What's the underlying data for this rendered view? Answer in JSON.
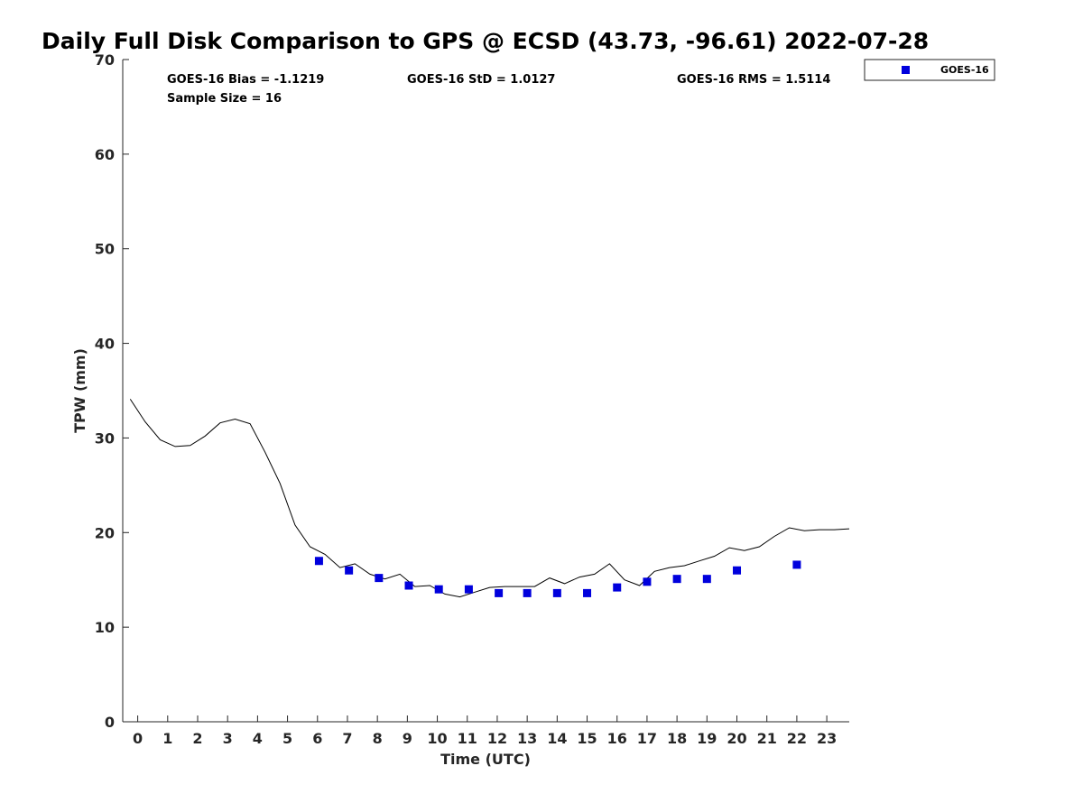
{
  "chart_data": {
    "type": "scatter",
    "title": "Daily Full Disk Comparison to GPS @ ECSD (43.73, -96.61) 2022-07-28",
    "xlabel": "Time (UTC)",
    "ylabel": "TPW (mm)",
    "xlim": [
      -0.5,
      23.75
    ],
    "ylim": [
      0,
      70
    ],
    "x_ticks": [
      0,
      1,
      2,
      3,
      4,
      5,
      6,
      7,
      8,
      9,
      10,
      11,
      12,
      13,
      14,
      15,
      16,
      17,
      18,
      19,
      20,
      21,
      22,
      23
    ],
    "y_ticks": [
      0,
      10,
      20,
      30,
      40,
      50,
      60,
      70
    ],
    "stats": {
      "bias": "GOES-16 Bias = -1.1219",
      "std": "GOES-16 StD = 1.0127",
      "rms": "GOES-16 RMS = 1.5114",
      "sample_size": "Sample Size = 16"
    },
    "legend": {
      "position": "top-right-outside",
      "entries": [
        "GOES-16"
      ]
    },
    "series": [
      {
        "name": "GPS",
        "kind": "line",
        "color": "#000000",
        "x": [
          -0.25,
          0.25,
          0.75,
          1.25,
          1.75,
          2.25,
          2.75,
          3.25,
          3.75,
          4.25,
          4.75,
          5.25,
          5.75,
          6.25,
          6.75,
          7.25,
          7.75,
          8.25,
          8.75,
          9.25,
          9.75,
          10.25,
          10.75,
          11.25,
          11.75,
          12.25,
          12.75,
          13.25,
          13.75,
          14.25,
          14.75,
          15.25,
          15.75,
          16.25,
          16.75,
          17.25,
          17.75,
          18.25,
          18.75,
          19.25,
          19.75,
          20.25,
          20.75,
          21.25,
          21.75,
          22.25,
          22.75,
          23.25,
          23.75
        ],
        "y": [
          34.1,
          31.7,
          29.8,
          29.1,
          29.2,
          30.2,
          31.6,
          32.0,
          31.5,
          28.5,
          25.2,
          20.8,
          18.5,
          17.7,
          16.3,
          16.7,
          15.6,
          15.1,
          15.6,
          14.3,
          14.4,
          13.5,
          13.2,
          13.7,
          14.2,
          14.3,
          14.3,
          14.3,
          15.2,
          14.6,
          15.3,
          15.6,
          16.7,
          15.0,
          14.4,
          15.9,
          16.3,
          16.5,
          17.0,
          17.5,
          18.4,
          18.1,
          18.5,
          19.6,
          20.5,
          20.2,
          20.3,
          20.3,
          20.4
        ]
      },
      {
        "name": "GOES-16",
        "kind": "scatter",
        "color": "#0000dd",
        "x": [
          6.05,
          7.05,
          8.05,
          9.05,
          10.05,
          11.05,
          12.05,
          13.0,
          14.0,
          15.0,
          16.0,
          17.0,
          18.0,
          19.0,
          20.0,
          22.0
        ],
        "y": [
          17.0,
          16.0,
          15.2,
          14.4,
          14.0,
          14.0,
          13.6,
          13.6,
          13.6,
          13.6,
          14.2,
          14.8,
          15.1,
          15.1,
          16.0,
          16.6
        ]
      }
    ]
  }
}
